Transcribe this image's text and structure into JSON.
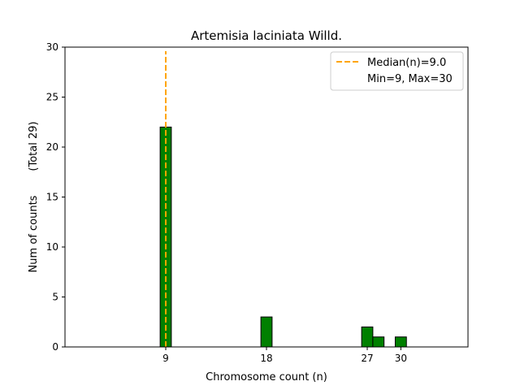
{
  "chart_data": {
    "type": "bar",
    "title": "Artemisia laciniata Willd.",
    "xlabel": "Chromosome count (n)",
    "ylabel": "Num of counts",
    "ylabel_total": "(Total 29)",
    "xlim": [
      0,
      36
    ],
    "ylim": [
      0,
      30
    ],
    "x_ticks": [
      9,
      18,
      27,
      30
    ],
    "y_ticks": [
      0,
      5,
      10,
      15,
      20,
      25,
      30
    ],
    "bars": [
      {
        "x": 9,
        "value": 22
      },
      {
        "x": 18,
        "value": 3
      },
      {
        "x": 27,
        "value": 2
      },
      {
        "x": 28,
        "value": 1
      },
      {
        "x": 30,
        "value": 1
      }
    ],
    "bar_width": 1,
    "bar_color": "#008000",
    "bar_edge": "#000000",
    "median": 9.0,
    "median_color": "#FFA500",
    "legend": {
      "position": "upper-right",
      "entries": [
        "Median(n)=9.0",
        "Min=9, Max=30"
      ]
    },
    "grid": false
  }
}
